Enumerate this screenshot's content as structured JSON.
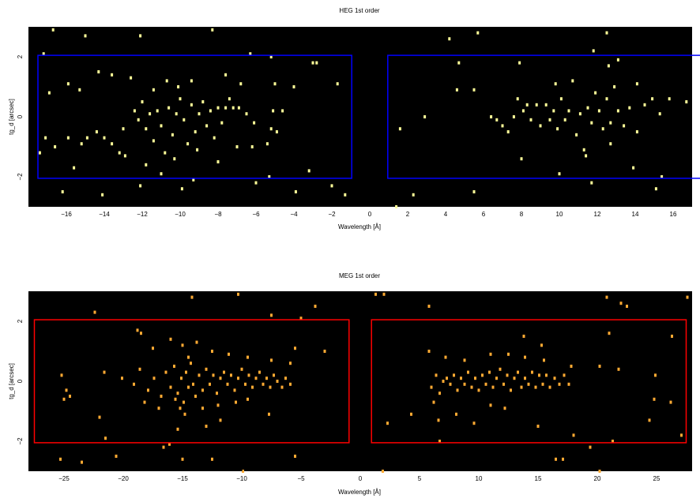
{
  "chart_data": [
    {
      "type": "scatter",
      "title": "HEG 1st order",
      "xlabel": "Wavelength [Å]",
      "ylabel": "tg_d [arcsec]",
      "xlim": [
        -18,
        17
      ],
      "ylim": [
        -3,
        3
      ],
      "xticks": [
        -16,
        -14,
        -12,
        -10,
        -8,
        -6,
        -4,
        -2,
        0,
        2,
        4,
        6,
        8,
        10,
        12,
        14,
        16
      ],
      "yticks": [
        -2,
        0,
        2
      ],
      "background": "#000000",
      "point_color": "#ffff99",
      "region_color": "#0000ff",
      "regions": [
        {
          "x": [
            -17.5,
            -0.95
          ],
          "y": [
            -2.05,
            2.05
          ]
        },
        {
          "x": [
            0.95,
            17.5
          ],
          "y": [
            -2.05,
            2.05
          ]
        }
      ],
      "points": [
        [
          -17.2,
          2.1
        ],
        [
          -16.7,
          2.9
        ],
        [
          -15.0,
          2.7
        ],
        [
          -12.1,
          2.7
        ],
        [
          -8.3,
          2.9
        ],
        [
          -6.3,
          2.1
        ],
        [
          -5.2,
          2.0
        ],
        [
          -3.0,
          1.8
        ],
        [
          -2.8,
          1.8
        ],
        [
          -1.7,
          1.1
        ],
        [
          -16.9,
          0.8
        ],
        [
          -15.9,
          1.1
        ],
        [
          -15.3,
          0.9
        ],
        [
          -14.3,
          1.5
        ],
        [
          -13.6,
          1.4
        ],
        [
          -12.6,
          1.3
        ],
        [
          -11.4,
          0.9
        ],
        [
          -10.7,
          1.2
        ],
        [
          -10.1,
          1.0
        ],
        [
          -9.4,
          1.2
        ],
        [
          -7.6,
          1.4
        ],
        [
          -6.8,
          1.1
        ],
        [
          -5.0,
          1.1
        ],
        [
          -4.0,
          1.0
        ],
        [
          -17.1,
          -0.7
        ],
        [
          -16.6,
          -1.0
        ],
        [
          -15.9,
          -0.7
        ],
        [
          -15.2,
          -0.9
        ],
        [
          -14.9,
          -0.7
        ],
        [
          -14.4,
          -0.5
        ],
        [
          -14.0,
          -0.7
        ],
        [
          -13.6,
          -0.9
        ],
        [
          -13.0,
          -0.4
        ],
        [
          -12.4,
          0.2
        ],
        [
          -12.2,
          -0.1
        ],
        [
          -12.0,
          0.5
        ],
        [
          -11.8,
          -0.4
        ],
        [
          -11.6,
          0.1
        ],
        [
          -11.4,
          -0.8
        ],
        [
          -11.2,
          0.2
        ],
        [
          -11.0,
          -0.3
        ],
        [
          -10.8,
          -1.2
        ],
        [
          -10.6,
          0.3
        ],
        [
          -10.4,
          -0.6
        ],
        [
          -10.2,
          0.1
        ],
        [
          -10.0,
          0.6
        ],
        [
          -9.8,
          -0.1
        ],
        [
          -9.6,
          -0.9
        ],
        [
          -9.4,
          0.4
        ],
        [
          -9.2,
          -0.5
        ],
        [
          -9.0,
          0.1
        ],
        [
          -8.8,
          0.5
        ],
        [
          -8.6,
          -0.3
        ],
        [
          -8.4,
          0.2
        ],
        [
          -8.2,
          -0.7
        ],
        [
          -8.0,
          0.3
        ],
        [
          -7.8,
          -0.2
        ],
        [
          -7.6,
          0.3
        ],
        [
          -7.4,
          0.6
        ],
        [
          -7.2,
          0.3
        ],
        [
          -6.9,
          0.3
        ],
        [
          -6.5,
          0.1
        ],
        [
          -6.1,
          -0.2
        ],
        [
          -5.1,
          0.2
        ],
        [
          -4.6,
          0.2
        ],
        [
          -5.2,
          -0.4
        ],
        [
          -4.9,
          -0.5
        ],
        [
          -11.8,
          -1.6
        ],
        [
          -10.3,
          -1.4
        ],
        [
          -9.1,
          -1.1
        ],
        [
          -7.0,
          -1.0
        ],
        [
          -6.2,
          -1.0
        ],
        [
          -5.4,
          -0.9
        ],
        [
          -13.2,
          -1.2
        ],
        [
          -12.9,
          -1.3
        ],
        [
          -15.6,
          -1.7
        ],
        [
          -17.4,
          -1.2
        ],
        [
          -8.0,
          -1.5
        ],
        [
          -5.3,
          -2.0
        ],
        [
          -3.2,
          -1.8
        ],
        [
          -16.2,
          -2.5
        ],
        [
          -14.1,
          -2.6
        ],
        [
          -12.1,
          -2.3
        ],
        [
          -9.9,
          -2.4
        ],
        [
          -6.0,
          -2.2
        ],
        [
          -3.9,
          -2.5
        ],
        [
          -2.0,
          -2.3
        ],
        [
          -1.3,
          -2.6
        ],
        [
          -11.0,
          -1.9
        ],
        [
          -9.3,
          -2.1
        ],
        [
          1.6,
          -0.4
        ],
        [
          2.9,
          0.0
        ],
        [
          4.7,
          1.8
        ],
        [
          4.6,
          0.9
        ],
        [
          4.2,
          2.6
        ],
        [
          5.7,
          2.8
        ],
        [
          5.5,
          0.9
        ],
        [
          5.5,
          -2.5
        ],
        [
          6.4,
          0.0
        ],
        [
          6.7,
          -0.1
        ],
        [
          7.0,
          -0.3
        ],
        [
          7.3,
          -0.5
        ],
        [
          7.6,
          0.0
        ],
        [
          7.8,
          0.6
        ],
        [
          8.1,
          0.2
        ],
        [
          8.3,
          0.4
        ],
        [
          8.5,
          -0.1
        ],
        [
          8.8,
          0.4
        ],
        [
          9.0,
          -0.3
        ],
        [
          9.3,
          0.4
        ],
        [
          9.5,
          -0.1
        ],
        [
          9.7,
          0.2
        ],
        [
          9.9,
          -0.4
        ],
        [
          10.1,
          0.6
        ],
        [
          10.3,
          -0.1
        ],
        [
          10.5,
          0.2
        ],
        [
          10.7,
          1.2
        ],
        [
          10.9,
          -0.6
        ],
        [
          11.1,
          0.1
        ],
        [
          11.3,
          -1.1
        ],
        [
          11.5,
          0.3
        ],
        [
          11.7,
          -0.2
        ],
        [
          11.9,
          0.8
        ],
        [
          12.1,
          0.2
        ],
        [
          12.3,
          -0.4
        ],
        [
          12.5,
          0.6
        ],
        [
          12.7,
          -0.2
        ],
        [
          12.9,
          1.0
        ],
        [
          13.1,
          0.2
        ],
        [
          13.4,
          -0.3
        ],
        [
          13.7,
          0.3
        ],
        [
          14.1,
          -0.5
        ],
        [
          14.5,
          0.4
        ],
        [
          14.9,
          0.6
        ],
        [
          15.3,
          0.1
        ],
        [
          15.8,
          0.6
        ],
        [
          7.9,
          1.8
        ],
        [
          9.8,
          1.1
        ],
        [
          11.8,
          2.2
        ],
        [
          12.6,
          1.7
        ],
        [
          13.1,
          1.9
        ],
        [
          14.1,
          1.1
        ],
        [
          16.7,
          0.5
        ],
        [
          8.0,
          -1.4
        ],
        [
          10.0,
          -1.9
        ],
        [
          11.4,
          -1.3
        ],
        [
          12.7,
          -0.9
        ],
        [
          13.9,
          -1.7
        ],
        [
          15.4,
          -2.0
        ],
        [
          15.1,
          -2.4
        ],
        [
          11.7,
          -2.2
        ],
        [
          2.3,
          -2.6
        ],
        [
          1.4,
          -3.0
        ],
        [
          12.5,
          2.8
        ]
      ]
    },
    {
      "type": "scatter",
      "title": "MEG 1st order",
      "xlabel": "Wavelength [Å]",
      "ylabel": "tg_d [arcsec]",
      "xlim": [
        -28,
        28
      ],
      "ylim": [
        -3,
        3
      ],
      "xticks": [
        -25,
        -20,
        -15,
        -10,
        -5,
        0,
        5,
        10,
        15,
        20,
        25
      ],
      "yticks": [
        -2,
        0,
        2
      ],
      "background": "#000000",
      "point_color": "#ffaa33",
      "region_color": "#ff0000",
      "regions": [
        {
          "x": [
            -27.5,
            -0.95
          ],
          "y": [
            -2.05,
            2.05
          ]
        },
        {
          "x": [
            0.95,
            27.5
          ],
          "y": [
            -2.05,
            2.05
          ]
        }
      ],
      "points": [
        [
          -18.5,
          1.6
        ],
        [
          -16.0,
          1.4
        ],
        [
          -13.8,
          1.3
        ],
        [
          -12.5,
          1.0
        ],
        [
          -11.1,
          0.9
        ],
        [
          -9.5,
          0.8
        ],
        [
          -7.5,
          0.7
        ],
        [
          -5.9,
          0.6
        ],
        [
          -5.5,
          1.1
        ],
        [
          -3.0,
          1.0
        ],
        [
          -21.6,
          0.3
        ],
        [
          -20.1,
          0.1
        ],
        [
          -19.1,
          -0.1
        ],
        [
          -18.6,
          0.4
        ],
        [
          -17.9,
          -0.3
        ],
        [
          -17.4,
          0.1
        ],
        [
          -16.8,
          -0.5
        ],
        [
          -16.4,
          0.3
        ],
        [
          -16.0,
          -0.2
        ],
        [
          -15.7,
          0.5
        ],
        [
          -15.4,
          -0.4
        ],
        [
          -15.1,
          0.1
        ],
        [
          -14.9,
          -0.7
        ],
        [
          -14.7,
          0.3
        ],
        [
          -14.5,
          -0.2
        ],
        [
          -14.3,
          0.6
        ],
        [
          -14.1,
          -0.1
        ],
        [
          -13.9,
          -0.5
        ],
        [
          -13.6,
          0.2
        ],
        [
          -13.3,
          -0.3
        ],
        [
          -13.0,
          0.4
        ],
        [
          -12.7,
          -0.1
        ],
        [
          -12.4,
          0.2
        ],
        [
          -12.1,
          -0.4
        ],
        [
          -11.8,
          0.1
        ],
        [
          -11.5,
          0.3
        ],
        [
          -11.2,
          -0.1
        ],
        [
          -10.9,
          0.2
        ],
        [
          -10.6,
          -0.3
        ],
        [
          -10.3,
          0.1
        ],
        [
          -10.0,
          0.4
        ],
        [
          -9.7,
          -0.1
        ],
        [
          -9.4,
          0.2
        ],
        [
          -9.1,
          -0.2
        ],
        [
          -8.8,
          0.1
        ],
        [
          -8.5,
          0.3
        ],
        [
          -8.2,
          -0.1
        ],
        [
          -7.9,
          0.1
        ],
        [
          -7.6,
          -0.2
        ],
        [
          -7.3,
          0.2
        ],
        [
          -7.0,
          0.0
        ],
        [
          -6.6,
          -0.2
        ],
        [
          -6.3,
          0.1
        ],
        [
          -5.9,
          -0.1
        ],
        [
          -15.2,
          -0.9
        ],
        [
          -14.8,
          -1.1
        ],
        [
          -15.6,
          -0.6
        ],
        [
          -14.5,
          0.8
        ],
        [
          -15.0,
          1.2
        ],
        [
          -13.3,
          -0.9
        ],
        [
          -12.0,
          -0.8
        ],
        [
          -10.5,
          -0.7
        ],
        [
          -9.5,
          -0.6
        ],
        [
          -17.0,
          -0.9
        ],
        [
          -18.2,
          -0.7
        ],
        [
          -25.0,
          -0.6
        ],
        [
          -25.2,
          0.2
        ],
        [
          -24.8,
          -0.3
        ],
        [
          -24.5,
          -0.5
        ],
        [
          -22.0,
          -1.2
        ],
        [
          -21.5,
          -1.9
        ],
        [
          -13.0,
          -1.5
        ],
        [
          -11.8,
          -1.3
        ],
        [
          -7.7,
          -1.1
        ],
        [
          -15.4,
          -1.6
        ],
        [
          -16.1,
          -2.1
        ],
        [
          -15.0,
          -2.6
        ],
        [
          -22.4,
          2.3
        ],
        [
          -18.8,
          1.7
        ],
        [
          -17.5,
          1.1
        ],
        [
          -10.3,
          2.9
        ],
        [
          -14.2,
          2.8
        ],
        [
          -5.0,
          2.1
        ],
        [
          -7.5,
          2.2
        ],
        [
          -5.5,
          -2.5
        ],
        [
          -12.5,
          -2.6
        ],
        [
          -25.3,
          -2.6
        ],
        [
          -23.5,
          -2.7
        ],
        [
          -20.6,
          -2.5
        ],
        [
          -16.6,
          -2.2
        ],
        [
          -9.9,
          -3.0
        ],
        [
          -3.8,
          2.5
        ],
        [
          1.3,
          2.9
        ],
        [
          2.0,
          2.9
        ],
        [
          5.8,
          2.5
        ],
        [
          20.8,
          2.8
        ],
        [
          22.0,
          2.6
        ],
        [
          22.5,
          2.5
        ],
        [
          27.6,
          2.8
        ],
        [
          6.0,
          -0.2
        ],
        [
          6.4,
          0.2
        ],
        [
          6.7,
          -0.4
        ],
        [
          7.0,
          0.0
        ],
        [
          7.3,
          0.1
        ],
        [
          7.6,
          -0.1
        ],
        [
          7.9,
          0.2
        ],
        [
          8.2,
          -0.3
        ],
        [
          8.5,
          0.1
        ],
        [
          8.8,
          -0.1
        ],
        [
          9.1,
          0.3
        ],
        [
          9.4,
          -0.2
        ],
        [
          9.7,
          0.1
        ],
        [
          10.0,
          -0.3
        ],
        [
          10.3,
          0.2
        ],
        [
          10.6,
          -0.1
        ],
        [
          10.9,
          0.3
        ],
        [
          11.2,
          -0.2
        ],
        [
          11.5,
          0.1
        ],
        [
          11.8,
          0.4
        ],
        [
          12.1,
          -0.1
        ],
        [
          12.4,
          0.2
        ],
        [
          12.7,
          -0.3
        ],
        [
          13.0,
          0.1
        ],
        [
          13.3,
          0.3
        ],
        [
          13.6,
          -0.2
        ],
        [
          13.9,
          0.1
        ],
        [
          14.2,
          -0.1
        ],
        [
          14.5,
          0.3
        ],
        [
          14.8,
          -0.2
        ],
        [
          15.1,
          0.2
        ],
        [
          15.4,
          -0.1
        ],
        [
          15.7,
          0.2
        ],
        [
          16.0,
          -0.2
        ],
        [
          16.4,
          0.1
        ],
        [
          16.8,
          -0.1
        ],
        [
          17.2,
          0.2
        ],
        [
          17.6,
          -0.1
        ],
        [
          5.8,
          1.0
        ],
        [
          6.2,
          -0.7
        ],
        [
          7.2,
          0.8
        ],
        [
          8.8,
          0.7
        ],
        [
          11.0,
          0.9
        ],
        [
          12.5,
          0.9
        ],
        [
          13.9,
          0.8
        ],
        [
          15.5,
          0.7
        ],
        [
          17.8,
          0.5
        ],
        [
          11.0,
          -0.8
        ],
        [
          12.2,
          -0.9
        ],
        [
          8.1,
          -1.1
        ],
        [
          6.6,
          -1.3
        ],
        [
          9.6,
          -1.4
        ],
        [
          4.3,
          -1.1
        ],
        [
          2.3,
          -1.4
        ],
        [
          6.7,
          -2.0
        ],
        [
          15.0,
          -1.5
        ],
        [
          18.0,
          -1.8
        ],
        [
          19.4,
          -2.2
        ],
        [
          24.4,
          -1.3
        ],
        [
          24.8,
          -0.6
        ],
        [
          24.9,
          0.2
        ],
        [
          20.2,
          0.5
        ],
        [
          21.8,
          0.4
        ],
        [
          26.2,
          -0.7
        ],
        [
          21.3,
          -2.0
        ],
        [
          13.8,
          1.5
        ],
        [
          15.3,
          1.2
        ],
        [
          21.0,
          1.6
        ],
        [
          26.3,
          1.5
        ],
        [
          27.1,
          -1.8
        ],
        [
          16.5,
          -2.6
        ],
        [
          17.1,
          -2.6
        ],
        [
          20.2,
          -3.0
        ],
        [
          1.9,
          -3.0
        ]
      ]
    }
  ]
}
